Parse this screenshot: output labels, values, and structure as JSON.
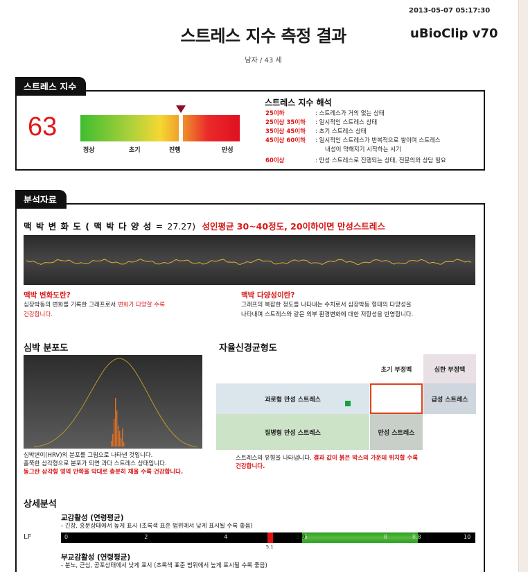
{
  "header": {
    "timestamp": "2013-05-07 05:17:30",
    "title": "스트레스 지수 측정 결과",
    "brand": "uBioClip v70",
    "subject": "남자 / 43 세"
  },
  "stress": {
    "tab": "스트레스 지수",
    "score": "63",
    "gauge_value": 63,
    "gauge_labels": [
      "정상",
      "초기",
      "진행",
      "만성"
    ],
    "interp_title": "스트레스 지수 해석",
    "ranges": [
      {
        "range": "25이하",
        "desc": ": 스트레스가 거의 없는 상태"
      },
      {
        "range": "25이상 35이하",
        "desc": ": 일시적인 스트레스 상태"
      },
      {
        "range": "35이상 45이하",
        "desc": ": 초기 스트레스 상태"
      },
      {
        "range": "45이상 60이하",
        "desc": ": 일시적인 스트레스가 반복적으로 쌓이며 스트레스"
      },
      {
        "range": "",
        "desc": "내성이 약해지기 시작하는 시기"
      },
      {
        "range": "60이상",
        "desc": ": 만성 스트레스로 진행되는 상태, 전문의와 상담 필요"
      }
    ],
    "colors": {
      "score": "#e01818",
      "marker": "#8b1020"
    }
  },
  "analysis": {
    "tab": "분석자료",
    "hrv_title_prefix": "맥 박 변 화 도 ( 맥 박 다 양 성  =",
    "hrv_value": "27.27)",
    "hrv_note": "성인평균 30~40정도, 20이하이면 만성스트레스",
    "what_hrv_title": "맥박 변화도란?",
    "what_hrv_text1": "심장박동의 변화를 기록한 그래프로서 ",
    "what_hrv_text_red": "변화가 다양할 수록",
    "what_hrv_text2": "건강합니다.",
    "what_var_title": "맥박 다양성이란?",
    "what_var_line1": "그래프의 복잡한 정도를 나타내는 수치로서 심장박동 형태의 다양성을",
    "what_var_line2": "나타내며 스트레스와 같은 외부 환경변화에 대한 저항성을 반영합니다.",
    "dist_title": "심박 분포도",
    "dist_line1": "심박변이(HRV)의 분포를 그림으로 나타낸 것입니다.",
    "dist_line2": "홀쭉한 삼각형으로 분포가 되면 과다 스트레스 상태입니다.",
    "dist_line3": "동그란 삼각형 영역 안쪽을 막대로 충분히 채울 수록 건강합니다.",
    "ans_title": "자율신경균형도",
    "ans_cells": {
      "early_irregular": "초기 부정맥",
      "severe_irregular": "심한 부정맥",
      "fatigue_chronic": "과로형 만성 스트레스",
      "acute": "급성 스트레스",
      "disease_chronic": "질병형 만성 스트레스",
      "chronic": "만성 스트레스"
    },
    "ans_note1": "스트레스의 유형을 나타냅니다. ",
    "ans_note_red1": "결과 값이 붉은 박스의 가운데 위치할 수록",
    "ans_note_red2": "건강합니다."
  },
  "detail": {
    "title": "상세분석",
    "sympathetic_title": "교감활성 (연령평균)",
    "sympathetic_desc": "- 긴장, 흥분상태에서 높게 표시 (초록색 표준 범위에서 낮게 표시될 수록 좋음)",
    "lf_label": "LF",
    "ticks": [
      "0",
      "2",
      "4",
      "6",
      "8",
      "10"
    ],
    "lf_value_label": "5.1",
    "lf_value": 5.1,
    "range_low_label": "5.9",
    "range_high_label": "8.8",
    "range_low": 5.9,
    "range_high": 8.8,
    "parasympathetic_title": "부교감활성 (연령평균)",
    "parasympathetic_desc": "- 분노, 근심, 공포상태에서 낮게 표시 (초록색 표준 범위에서 높게 표시될 수록 좋음)"
  }
}
